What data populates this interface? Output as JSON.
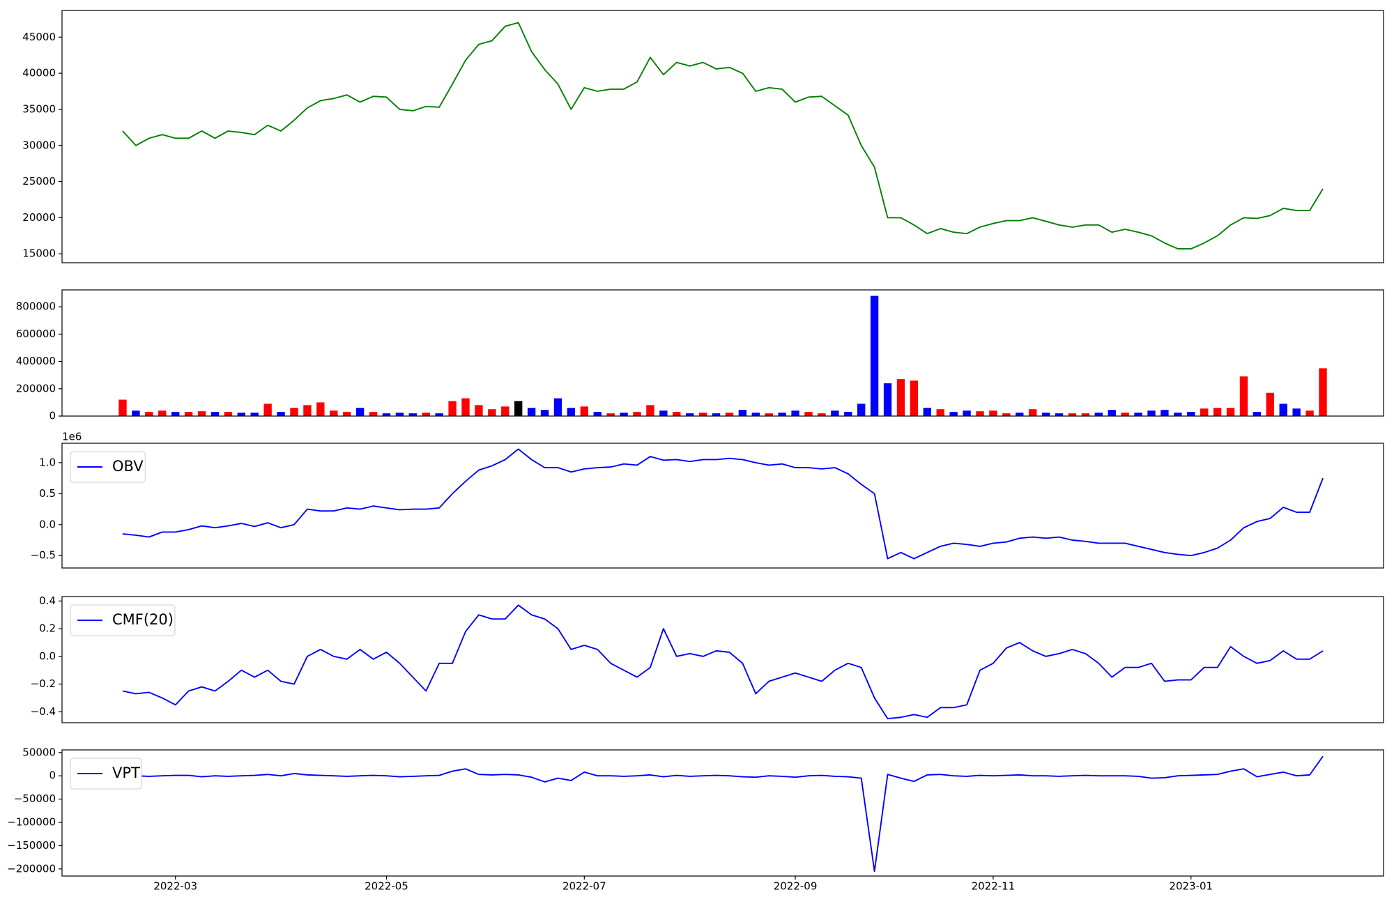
{
  "chart_data": [
    {
      "type": "line",
      "color": "#008000",
      "values": [
        32000,
        30000,
        31000,
        31500,
        31000,
        31000,
        32000,
        31000,
        32000,
        31800,
        31500,
        32800,
        32000,
        33500,
        35200,
        36200,
        36500,
        37000,
        36000,
        36800,
        36700,
        35000,
        34800,
        35400,
        35300,
        38500,
        41800,
        44000,
        44500,
        46500,
        47000,
        43000,
        40500,
        38500,
        35000,
        38000,
        37500,
        37800,
        37800,
        38800,
        42200,
        39800,
        41500,
        41000,
        41500,
        40600,
        40800,
        40000,
        37500,
        38000,
        37800,
        36000,
        36700,
        36800,
        35500,
        34200,
        30000,
        27000,
        20000,
        20000,
        19000,
        17800,
        18500,
        18000,
        17800,
        18700,
        19200,
        19600,
        19600,
        20000,
        19500,
        19000,
        18700,
        19000,
        19000,
        18000,
        18400,
        18000,
        17500,
        16500,
        15700,
        15700,
        16500,
        17500,
        19000,
        20000,
        19900,
        20300,
        21300,
        21000,
        21000,
        24000
      ],
      "ylim": [
        13770,
        48690
      ],
      "yticks": [
        15000,
        20000,
        25000,
        30000,
        35000,
        40000,
        45000
      ]
    },
    {
      "type": "bar",
      "values": [
        120000,
        40000,
        30000,
        40000,
        30000,
        30000,
        35000,
        30000,
        30000,
        25000,
        25000,
        90000,
        30000,
        60000,
        80000,
        100000,
        40000,
        30000,
        60000,
        30000,
        20000,
        25000,
        20000,
        25000,
        20000,
        110000,
        130000,
        80000,
        50000,
        70000,
        110000,
        60000,
        45000,
        130000,
        60000,
        70000,
        30000,
        20000,
        25000,
        30000,
        80000,
        40000,
        30000,
        20000,
        25000,
        20000,
        25000,
        45000,
        25000,
        20000,
        25000,
        40000,
        30000,
        20000,
        40000,
        30000,
        90000,
        880000,
        240000,
        270000,
        260000,
        60000,
        50000,
        30000,
        40000,
        35000,
        40000,
        20000,
        25000,
        50000,
        25000,
        20000,
        20000,
        20000,
        25000,
        45000,
        25000,
        25000,
        40000,
        45000,
        25000,
        30000,
        55000,
        60000,
        60000,
        290000,
        30000,
        170000,
        90000,
        55000,
        40000,
        350000
      ],
      "colors": [
        "red",
        "blue",
        "red",
        "red",
        "blue",
        "red",
        "red",
        "blue",
        "red",
        "blue",
        "blue",
        "red",
        "blue",
        "red",
        "red",
        "red",
        "red",
        "red",
        "blue",
        "red",
        "blue",
        "blue",
        "blue",
        "red",
        "blue",
        "red",
        "red",
        "red",
        "red",
        "red",
        "black",
        "blue",
        "blue",
        "blue",
        "blue",
        "red",
        "blue",
        "red",
        "blue",
        "red",
        "red",
        "blue",
        "red",
        "blue",
        "red",
        "blue",
        "red",
        "blue",
        "blue",
        "red",
        "blue",
        "blue",
        "red",
        "red",
        "blue",
        "blue",
        "blue",
        "blue",
        "blue",
        "red",
        "red",
        "blue",
        "red",
        "blue",
        "blue",
        "red",
        "red",
        "red",
        "blue",
        "red",
        "blue",
        "blue",
        "red",
        "red",
        "blue",
        "blue",
        "red",
        "blue",
        "blue",
        "blue",
        "blue",
        "blue",
        "red",
        "red",
        "red",
        "red",
        "blue",
        "red",
        "blue",
        "blue",
        "red",
        "red"
      ],
      "ylim": [
        0,
        923600
      ],
      "yticks": [
        0,
        200000,
        400000,
        600000,
        800000
      ]
    },
    {
      "type": "line",
      "legend": "upper left",
      "y_offset_text": "1e6",
      "series": [
        {
          "name": "OBV",
          "color": "#0000ff",
          "values": [
            -0.15,
            -0.17,
            -0.2,
            -0.12,
            -0.12,
            -0.08,
            -0.02,
            -0.05,
            -0.02,
            0.02,
            -0.03,
            0.03,
            -0.05,
            0,
            0.25,
            0.22,
            0.22,
            0.27,
            0.25,
            0.3,
            0.27,
            0.24,
            0.25,
            0.25,
            0.27,
            0.5,
            0.7,
            0.88,
            0.95,
            1.05,
            1.22,
            1.05,
            0.92,
            0.92,
            0.85,
            0.9,
            0.92,
            0.93,
            0.98,
            0.96,
            1.1,
            1.04,
            1.05,
            1.02,
            1.05,
            1.05,
            1.07,
            1.05,
            1.0,
            0.96,
            0.98,
            0.92,
            0.92,
            0.9,
            0.92,
            0.82,
            0.65,
            0.5,
            -0.55,
            -0.45,
            -0.55,
            -0.45,
            -0.35,
            -0.3,
            -0.32,
            -0.35,
            -0.3,
            -0.28,
            -0.22,
            -0.2,
            -0.22,
            -0.2,
            -0.25,
            -0.27,
            -0.3,
            -0.3,
            -0.3,
            -0.35,
            -0.4,
            -0.45,
            -0.48,
            -0.5,
            -0.45,
            -0.38,
            -0.25,
            -0.05,
            0.05,
            0.1,
            0.28,
            0.2,
            0.2,
            0.75
          ]
        }
      ],
      "ylim": [
        -0.7,
        1.314
      ],
      "yticks": [
        {
          "value": -0.5,
          "label": "−0.5"
        },
        {
          "value": 0,
          "label": "0.0"
        },
        {
          "value": 0.5,
          "label": "0.5"
        },
        {
          "value": 1,
          "label": "1.0"
        }
      ]
    },
    {
      "type": "line",
      "legend": "upper left",
      "series": [
        {
          "name": "CMF(20)",
          "color": "#0000ff",
          "values": [
            -0.25,
            -0.27,
            -0.26,
            -0.3,
            -0.35,
            -0.25,
            -0.22,
            -0.25,
            -0.18,
            -0.1,
            -0.15,
            -0.1,
            -0.18,
            -0.2,
            0,
            0.05,
            0,
            -0.02,
            0.05,
            -0.02,
            0.03,
            -0.05,
            -0.15,
            -0.25,
            -0.05,
            -0.05,
            0.18,
            0.3,
            0.27,
            0.27,
            0.37,
            0.3,
            0.27,
            0.2,
            0.05,
            0.08,
            0.05,
            -0.05,
            -0.1,
            -0.15,
            -0.08,
            0.2,
            0,
            0.02,
            0,
            0.04,
            0.03,
            -0.05,
            -0.27,
            -0.18,
            -0.15,
            -0.12,
            -0.15,
            -0.18,
            -0.1,
            -0.05,
            -0.08,
            -0.3,
            -0.45,
            -0.44,
            -0.42,
            -0.44,
            -0.37,
            -0.37,
            -0.35,
            -0.1,
            -0.05,
            0.06,
            0.1,
            0.04,
            0,
            0.02,
            0.05,
            0.02,
            -0.05,
            -0.15,
            -0.08,
            -0.08,
            -0.05,
            -0.18,
            -0.17,
            -0.17,
            -0.08,
            -0.08,
            0.07,
            0,
            -0.05,
            -0.03,
            0.04,
            -0.02,
            -0.02,
            0.04
          ]
        }
      ],
      "ylim": [
        -0.479,
        0.432
      ],
      "yticks": [
        {
          "value": -0.4,
          "label": "−0.4"
        },
        {
          "value": -0.2,
          "label": "−0.2"
        },
        {
          "value": 0,
          "label": "0.0"
        },
        {
          "value": 0.2,
          "label": "0.2"
        },
        {
          "value": 0.4,
          "label": "0.4"
        }
      ]
    },
    {
      "type": "line",
      "legend": "upper left",
      "categories": [
        null,
        null,
        null,
        null,
        "2022-03",
        null,
        null,
        null,
        null,
        null,
        null,
        null,
        null,
        null,
        null,
        null,
        null,
        null,
        null,
        null,
        "2022-05",
        null,
        null,
        null,
        null,
        null,
        null,
        null,
        null,
        null,
        null,
        null,
        null,
        null,
        null,
        "2022-07",
        null,
        null,
        null,
        null,
        null,
        null,
        null,
        null,
        null,
        null,
        null,
        null,
        null,
        null,
        null,
        "2022-09",
        null,
        null,
        null,
        null,
        null,
        null,
        null,
        null,
        null,
        null,
        null,
        null,
        null,
        null,
        "2022-11",
        null,
        null,
        null,
        null,
        null,
        null,
        null,
        null,
        null,
        null,
        null,
        null,
        null,
        null,
        "2023-01",
        null,
        null,
        null,
        null,
        null,
        null,
        null,
        null,
        null,
        null
      ],
      "series": [
        {
          "name": "VPT",
          "color": "#0000ff",
          "values": [
            0,
            0,
            -1000,
            0,
            1000,
            1000,
            -2000,
            0,
            -1000,
            0,
            1000,
            3000,
            0,
            5000,
            2000,
            1000,
            0,
            -1000,
            0,
            1000,
            0,
            -2000,
            -1000,
            0,
            1000,
            10000,
            15000,
            3000,
            2000,
            3000,
            2000,
            -3000,
            -13000,
            -5000,
            -10000,
            8000,
            0,
            0,
            -1000,
            0,
            2000,
            -2000,
            1000,
            -1000,
            0,
            1000,
            0,
            -2000,
            -3000,
            0,
            -1000,
            -3000,
            0,
            1000,
            -1000,
            -2000,
            -5000,
            -205000,
            3000,
            -5000,
            -12000,
            2000,
            3000,
            0,
            -1000,
            1000,
            0,
            1000,
            2000,
            0,
            0,
            -1000,
            0,
            1000,
            0,
            0,
            0,
            -1000,
            -5000,
            -4000,
            0,
            1000,
            2000,
            3000,
            10000,
            15000,
            -2000,
            3000,
            8000,
            0,
            2000,
            42000
          ]
        }
      ],
      "ylim": [
        -215270,
        55725
      ],
      "yticks": [
        {
          "value": -200000,
          "label": "−200000"
        },
        {
          "value": -150000,
          "label": "−150000"
        },
        {
          "value": -100000,
          "label": "−100000"
        },
        {
          "value": -50000,
          "label": "−50000"
        },
        0,
        50000
      ]
    }
  ]
}
